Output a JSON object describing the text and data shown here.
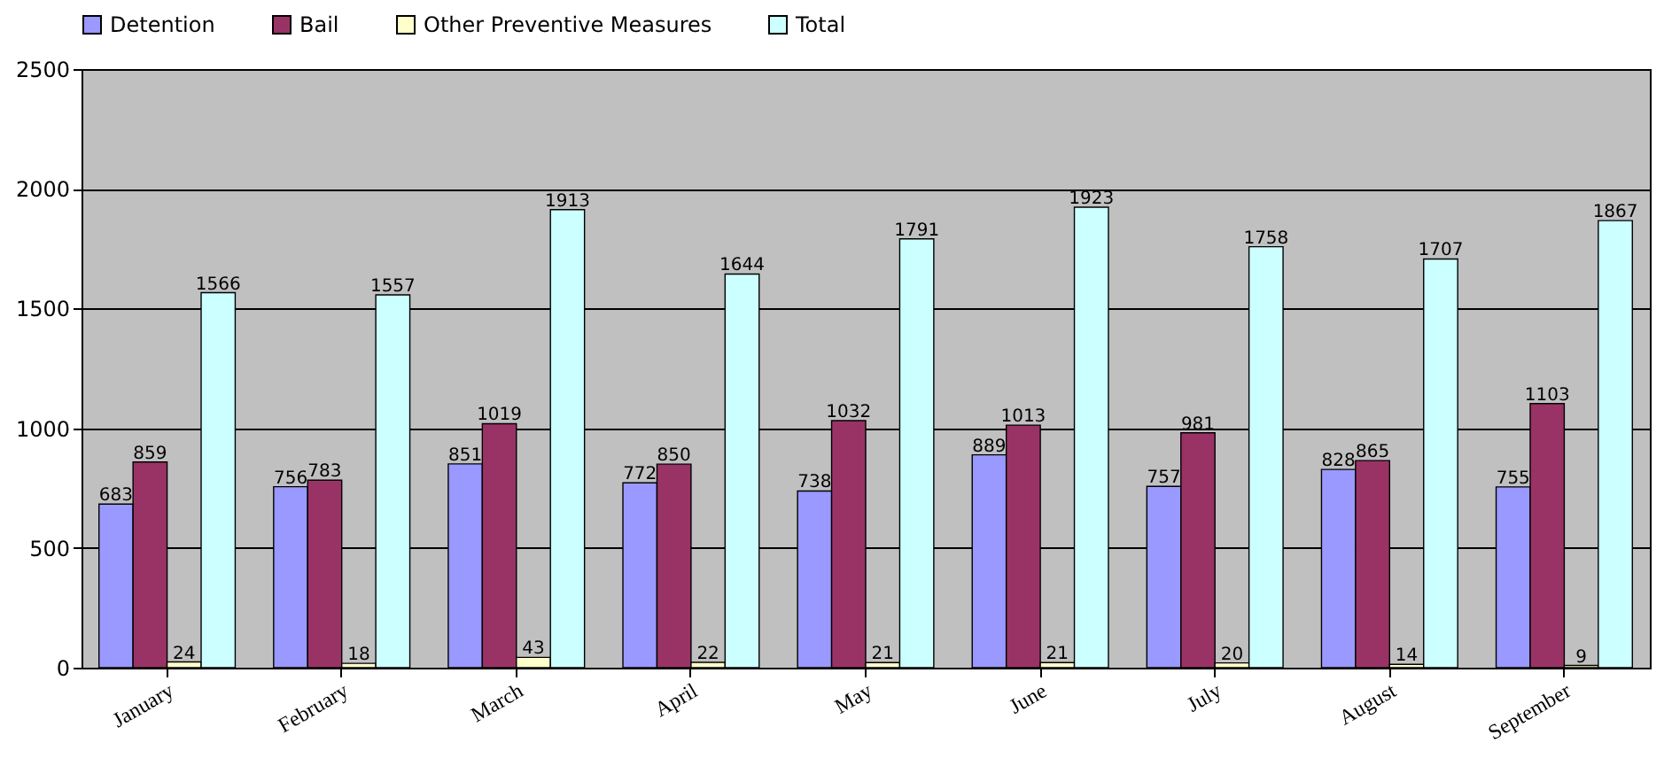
{
  "chart_data": {
    "type": "bar",
    "categories": [
      "January",
      "February",
      "March",
      "April",
      "May",
      "June",
      "July",
      "August",
      "September"
    ],
    "series": [
      {
        "name": "Detention",
        "color": "#9999ff",
        "values": [
          683,
          756,
          851,
          772,
          738,
          889,
          757,
          828,
          755
        ]
      },
      {
        "name": "Bail",
        "color": "#993366",
        "values": [
          859,
          783,
          1019,
          850,
          1032,
          1013,
          981,
          865,
          1103
        ]
      },
      {
        "name": "Other Preventive Measures",
        "color": "#ffffcc",
        "values": [
          24,
          18,
          43,
          22,
          21,
          21,
          20,
          14,
          9
        ]
      },
      {
        "name": "Total",
        "color": "#ccffff",
        "values": [
          1566,
          1557,
          1913,
          1644,
          1791,
          1923,
          1758,
          1707,
          1867
        ]
      }
    ],
    "ylim": [
      0,
      2500
    ],
    "yticks": [
      0,
      500,
      1000,
      1500,
      2000,
      2500
    ],
    "grid": "y",
    "legend": "top",
    "data_labels": true
  }
}
